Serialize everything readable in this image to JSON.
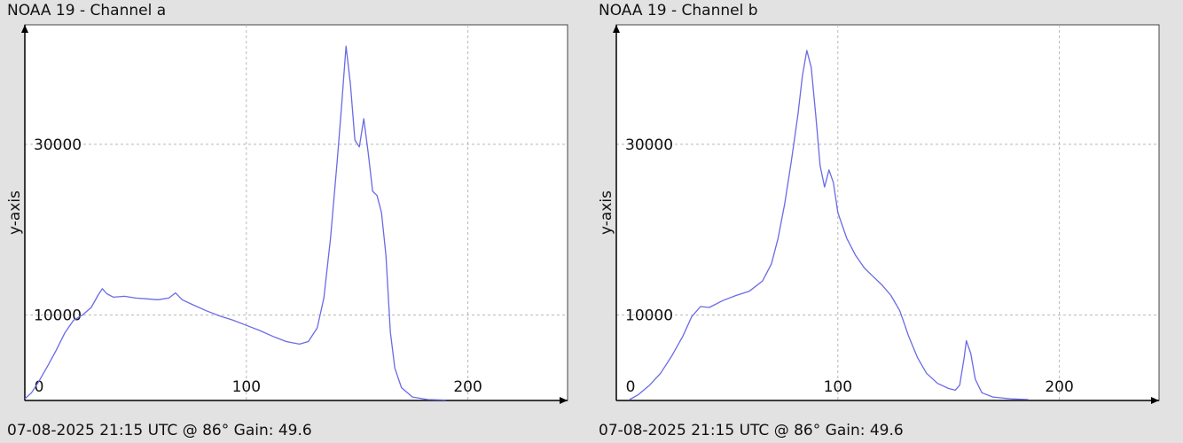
{
  "chart_data": [
    {
      "type": "line",
      "title": "NOAA 19 - Channel a",
      "footer": "07-08-2025 21:15 UTC @ 86° Gain: 49.6",
      "ylabel": "y-axis",
      "xlabel": "",
      "xlim": [
        0,
        245
      ],
      "ylim": [
        0,
        44000
      ],
      "x_ticks": [
        0,
        100,
        200
      ],
      "y_ticks": [
        10000,
        30000
      ],
      "grid": true,
      "series": [
        {
          "color": "#6a6ae6",
          "points": [
            [
              0,
              200
            ],
            [
              3,
              900
            ],
            [
              6,
              2100
            ],
            [
              10,
              3900
            ],
            [
              14,
              5800
            ],
            [
              18,
              7900
            ],
            [
              22,
              9400
            ],
            [
              26,
              10000
            ],
            [
              30,
              10900
            ],
            [
              33,
              12300
            ],
            [
              35,
              13100
            ],
            [
              37,
              12500
            ],
            [
              40,
              12100
            ],
            [
              45,
              12200
            ],
            [
              50,
              12000
            ],
            [
              55,
              11900
            ],
            [
              60,
              11800
            ],
            [
              65,
              12000
            ],
            [
              68,
              12600
            ],
            [
              71,
              11800
            ],
            [
              76,
              11200
            ],
            [
              82,
              10500
            ],
            [
              88,
              9900
            ],
            [
              94,
              9400
            ],
            [
              100,
              8800
            ],
            [
              106,
              8200
            ],
            [
              112,
              7500
            ],
            [
              118,
              6900
            ],
            [
              124,
              6600
            ],
            [
              128,
              6900
            ],
            [
              132,
              8500
            ],
            [
              135,
              12000
            ],
            [
              138,
              19000
            ],
            [
              141,
              28000
            ],
            [
              143,
              34500
            ],
            [
              145,
              41500
            ],
            [
              147,
              37000
            ],
            [
              149,
              30500
            ],
            [
              151,
              29700
            ],
            [
              153,
              33000
            ],
            [
              155,
              29000
            ],
            [
              157,
              24500
            ],
            [
              159,
              24000
            ],
            [
              161,
              22000
            ],
            [
              163,
              17000
            ],
            [
              165,
              8000
            ],
            [
              167,
              3800
            ],
            [
              170,
              1500
            ],
            [
              175,
              400
            ],
            [
              182,
              100
            ],
            [
              190,
              50
            ]
          ]
        }
      ]
    },
    {
      "type": "line",
      "title": "NOAA 19 - Channel b",
      "footer": "07-08-2025 21:15 UTC @ 86° Gain: 49.6",
      "ylabel": "y-axis",
      "xlabel": "",
      "xlim": [
        0,
        245
      ],
      "ylim": [
        0,
        44000
      ],
      "x_ticks": [
        0,
        100,
        200
      ],
      "y_ticks": [
        10000,
        30000
      ],
      "grid": true,
      "series": [
        {
          "color": "#6a6ae6",
          "points": [
            [
              6,
              100
            ],
            [
              10,
              700
            ],
            [
              15,
              1800
            ],
            [
              20,
              3200
            ],
            [
              25,
              5200
            ],
            [
              30,
              7500
            ],
            [
              34,
              9800
            ],
            [
              38,
              11000
            ],
            [
              42,
              10900
            ],
            [
              48,
              11700
            ],
            [
              54,
              12300
            ],
            [
              60,
              12800
            ],
            [
              66,
              14000
            ],
            [
              70,
              16000
            ],
            [
              73,
              19000
            ],
            [
              76,
              23000
            ],
            [
              79,
              28000
            ],
            [
              82,
              33500
            ],
            [
              84,
              38000
            ],
            [
              86,
              41000
            ],
            [
              88,
              39000
            ],
            [
              90,
              33500
            ],
            [
              92,
              27500
            ],
            [
              94,
              25000
            ],
            [
              96,
              27000
            ],
            [
              98,
              25500
            ],
            [
              100,
              22000
            ],
            [
              104,
              19000
            ],
            [
              108,
              17000
            ],
            [
              112,
              15500
            ],
            [
              116,
              14500
            ],
            [
              120,
              13500
            ],
            [
              124,
              12300
            ],
            [
              128,
              10500
            ],
            [
              132,
              7500
            ],
            [
              136,
              5000
            ],
            [
              140,
              3200
            ],
            [
              145,
              2000
            ],
            [
              150,
              1400
            ],
            [
              153,
              1200
            ],
            [
              155,
              1800
            ],
            [
              157,
              5000
            ],
            [
              158,
              7000
            ],
            [
              160,
              5500
            ],
            [
              162,
              2500
            ],
            [
              165,
              900
            ],
            [
              170,
              400
            ],
            [
              178,
              200
            ],
            [
              186,
              100
            ]
          ]
        }
      ]
    }
  ]
}
